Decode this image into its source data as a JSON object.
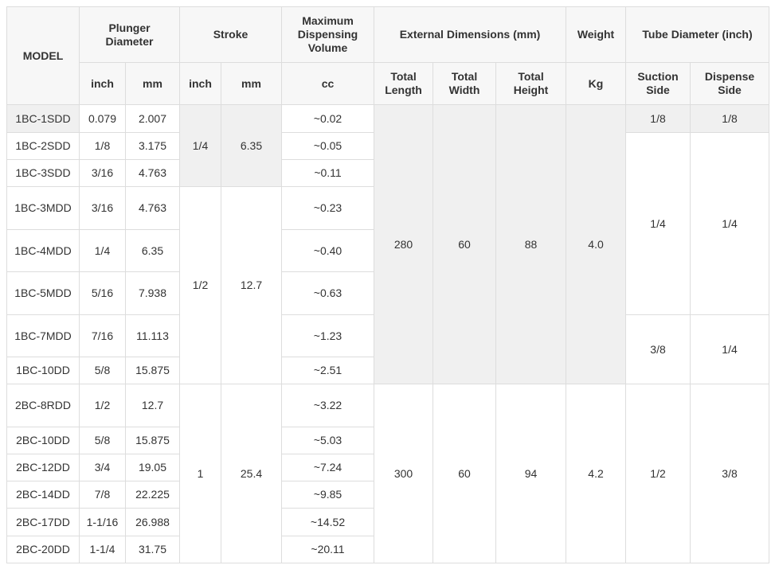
{
  "header": {
    "model": "MODEL",
    "groups": [
      "Plunger Diameter",
      "Stroke",
      "Maximum Dispensing Volume",
      "External Dimensions (mm)",
      "Weight",
      "Tube Diameter (inch)"
    ],
    "units": [
      "inch",
      "mm",
      "inch",
      "mm",
      "cc",
      "Total Length",
      "Total Width",
      "Total Height",
      "Kg",
      "Suction Side",
      "Dispense Side"
    ]
  },
  "rows": [
    {
      "model": "1BC-1SDD",
      "inch": "0.079",
      "mm": "2.007",
      "volume": "~0.02"
    },
    {
      "model": "1BC-2SDD",
      "inch": "1/8",
      "mm": "3.175",
      "volume": "~0.05"
    },
    {
      "model": "1BC-3SDD",
      "inch": "3/16",
      "mm": "4.763",
      "volume": "~0.11"
    },
    {
      "model": "1BC-3MDD",
      "inch": "3/16",
      "mm": "4.763",
      "volume": "~0.23"
    },
    {
      "model": "1BC-4MDD",
      "inch": "1/4",
      "mm": "6.35",
      "volume": "~0.40"
    },
    {
      "model": "1BC-5MDD",
      "inch": "5/16",
      "mm": "7.938",
      "volume": "~0.63"
    },
    {
      "model": "1BC-7MDD",
      "inch": "7/16",
      "mm": "11.113",
      "volume": "~1.23"
    },
    {
      "model": "1BC-10DD",
      "inch": "5/8",
      "mm": "15.875",
      "volume": "~2.51"
    },
    {
      "model": "2BC-8RDD",
      "inch": "1/2",
      "mm": "12.7",
      "volume": "~3.22"
    },
    {
      "model": "2BC-10DD",
      "inch": "5/8",
      "mm": "15.875",
      "volume": "~5.03"
    },
    {
      "model": "2BC-12DD",
      "inch": "3/4",
      "mm": "19.05",
      "volume": "~7.24"
    },
    {
      "model": "2BC-14DD",
      "inch": "7/8",
      "mm": "22.225",
      "volume": "~9.85"
    },
    {
      "model": "2BC-17DD",
      "inch": "1-1/16",
      "mm": "26.988",
      "volume": "~14.52"
    },
    {
      "model": "2BC-20DD",
      "inch": "1-1/4",
      "mm": "31.75",
      "volume": "~20.11"
    }
  ],
  "strokes": [
    {
      "inch": "1/4",
      "mm": "6.35"
    },
    {
      "inch": "1/2",
      "mm": "12.7"
    },
    {
      "inch": "1",
      "mm": "25.4"
    }
  ],
  "dimensions": [
    {
      "length": "280",
      "width": "60",
      "height": "88",
      "weight": "4.0"
    },
    {
      "length": "300",
      "width": "60",
      "height": "94",
      "weight": "4.2"
    }
  ],
  "tubes": [
    {
      "suction": "1/8",
      "dispense": "1/8"
    },
    {
      "suction": "1/4",
      "dispense": "1/4"
    },
    {
      "suction": "3/8",
      "dispense": "1/4"
    },
    {
      "suction": "1/2",
      "dispense": "3/8"
    }
  ]
}
